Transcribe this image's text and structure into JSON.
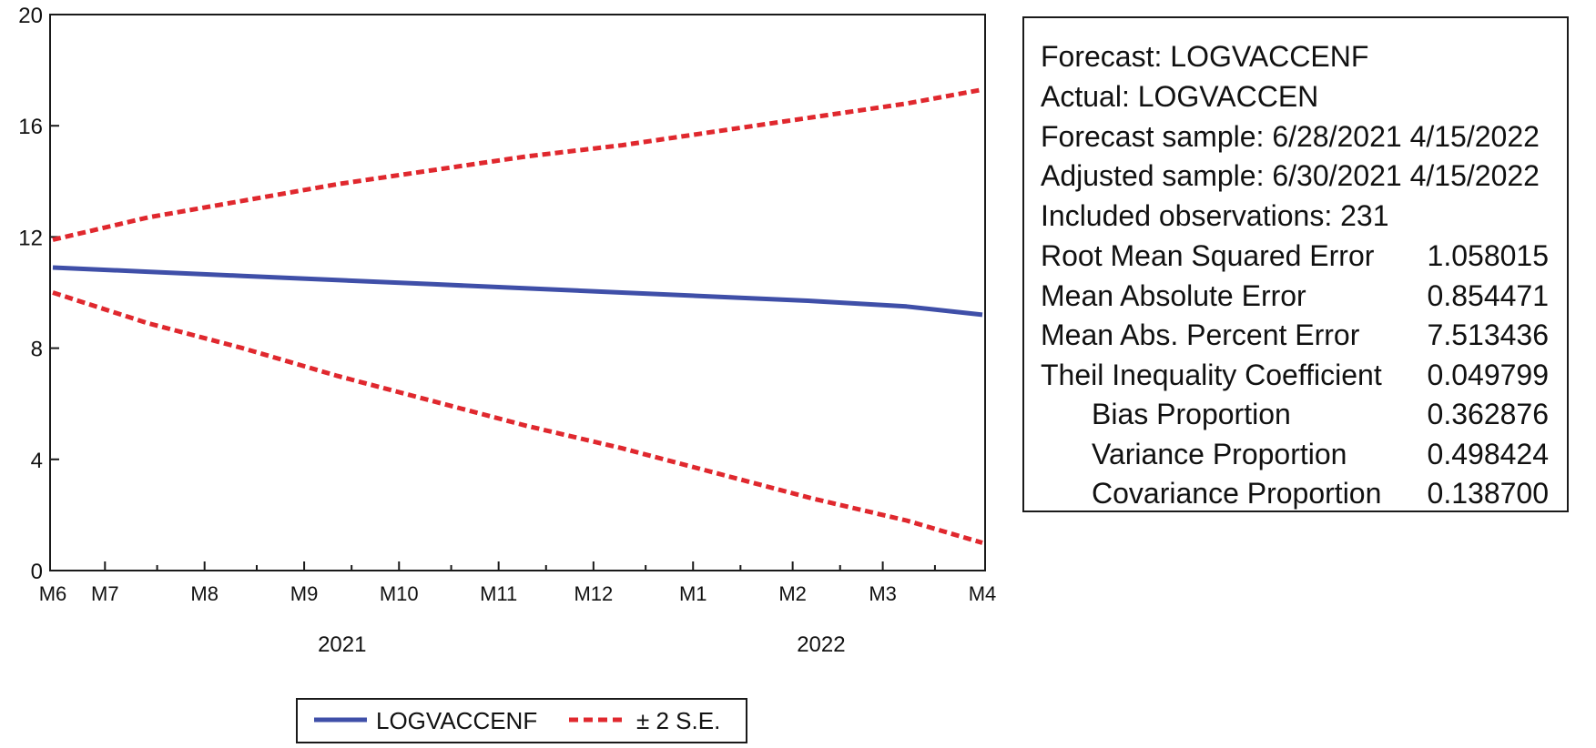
{
  "chart_data": {
    "type": "line",
    "title": "",
    "xlabel": "",
    "ylabel": "",
    "ylim": [
      0,
      20
    ],
    "y_ticks": [
      0,
      4,
      8,
      12,
      16,
      20
    ],
    "x_range": [
      0,
      9.8
    ],
    "x_ticks": [
      {
        "label": "M6",
        "x": 0
      },
      {
        "label": "M7",
        "x": 0.55
      },
      {
        "label": "M8",
        "x": 1.6
      },
      {
        "label": "M9",
        "x": 2.65
      },
      {
        "label": "M10",
        "x": 3.65
      },
      {
        "label": "M11",
        "x": 4.7
      },
      {
        "label": "M12",
        "x": 5.7
      },
      {
        "label": "M1",
        "x": 6.75
      },
      {
        "label": "M2",
        "x": 7.8
      },
      {
        "label": "M3",
        "x": 8.75
      },
      {
        "label": "M4",
        "x": 9.8
      }
    ],
    "minor_ticks": [
      1.1,
      2.15,
      3.15,
      4.2,
      5.2,
      6.25,
      7.25,
      8.3,
      9.3
    ],
    "year_labels": [
      {
        "label": "2021",
        "x": 3.05
      },
      {
        "label": "2022",
        "x": 8.1
      }
    ],
    "series": [
      {
        "name": "LOGVACCENF",
        "style": "solid",
        "color": "#3f4fa8",
        "x": [
          0,
          1,
          2,
          3,
          4,
          5,
          6,
          7,
          8,
          9,
          9.8
        ],
        "values": [
          10.9,
          10.75,
          10.6,
          10.45,
          10.3,
          10.15,
          10.0,
          9.85,
          9.7,
          9.5,
          9.2
        ]
      },
      {
        "name": "upper ± 2 S.E.",
        "style": "dashed",
        "color": "#e0282e",
        "x": [
          0,
          1,
          2,
          3,
          4,
          5,
          6,
          7,
          8,
          9,
          9.8
        ],
        "values": [
          11.9,
          12.7,
          13.3,
          13.9,
          14.4,
          14.9,
          15.3,
          15.8,
          16.3,
          16.8,
          17.3
        ]
      },
      {
        "name": "lower ± 2 S.E.",
        "style": "dashed",
        "color": "#e0282e",
        "x": [
          0,
          1,
          2,
          3,
          4,
          5,
          6,
          7,
          8,
          9,
          9.8
        ],
        "values": [
          10.0,
          8.9,
          8.0,
          7.0,
          6.1,
          5.2,
          4.4,
          3.5,
          2.6,
          1.8,
          1.0
        ]
      }
    ],
    "legend": {
      "placement": "bottom-center",
      "entries": [
        {
          "label": "LOGVACCENF",
          "style": "solid",
          "color": "#3f4fa8"
        },
        {
          "label": "± 2 S.E.",
          "style": "dashed",
          "color": "#e0282e"
        }
      ]
    }
  },
  "stats": {
    "forecast": "Forecast: LOGVACCENF",
    "actual": "Actual: LOGVACCEN",
    "forecast_sample": "Forecast sample: 6/28/2021 4/15/2022",
    "adjusted_sample": "Adjusted sample: 6/30/2021 4/15/2022",
    "included_observations": "Included observations: 231",
    "metrics": [
      {
        "label": "Root Mean Squared Error",
        "value": "1.058015",
        "indent": false
      },
      {
        "label": "Mean Absolute Error",
        "value": "0.854471",
        "indent": false
      },
      {
        "label": "Mean Abs. Percent Error",
        "value": "7.513436",
        "indent": false
      },
      {
        "label": "Theil Inequality Coefficient",
        "value": "0.049799",
        "indent": false
      },
      {
        "label": "Bias Proportion",
        "value": "0.362876",
        "indent": true
      },
      {
        "label": "Variance Proportion",
        "value": "0.498424",
        "indent": true
      },
      {
        "label": "Covariance Proportion",
        "value": "0.138700",
        "indent": true
      }
    ]
  }
}
